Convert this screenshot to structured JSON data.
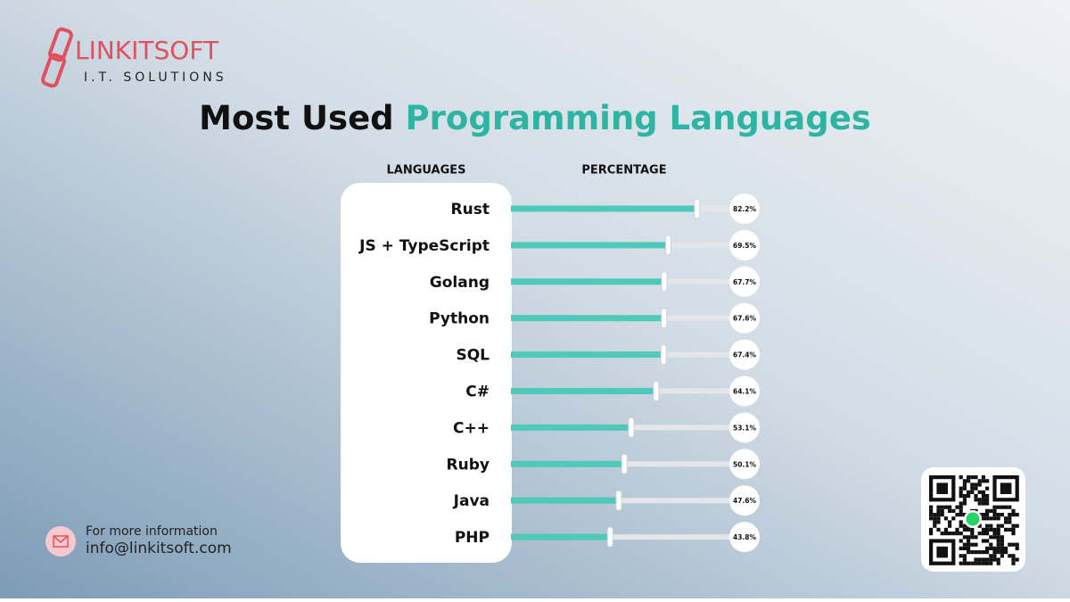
{
  "brand": {
    "name": "LINKITSOFT",
    "tagline": "I.T. SOLUTIONS"
  },
  "chart_data": {
    "type": "bar",
    "orientation": "horizontal",
    "title": [
      "Most Used",
      "Programming Languages"
    ],
    "category_header": "LANGUAGES",
    "value_header": "PERCENTAGE",
    "categories": [
      "Rust",
      "JS + TypeScript",
      "Golang",
      "Python",
      "SQL",
      "C#",
      "C++",
      "Ruby",
      "Java",
      "PHP"
    ],
    "values": [
      82.2,
      69.5,
      67.7,
      67.6,
      67.4,
      64.1,
      53.1,
      50.1,
      47.6,
      43.8
    ],
    "value_labels": [
      "82.2%",
      "69.5%",
      "67.7%",
      "67.6%",
      "67.4%",
      "64.1%",
      "53.1%",
      "50.1%",
      "47.6%",
      "43.8%"
    ],
    "color": "#4fc9b9",
    "xlim": [
      0,
      100
    ]
  },
  "footer": {
    "note": "For more information",
    "email": "info@linkitsoft.com"
  }
}
